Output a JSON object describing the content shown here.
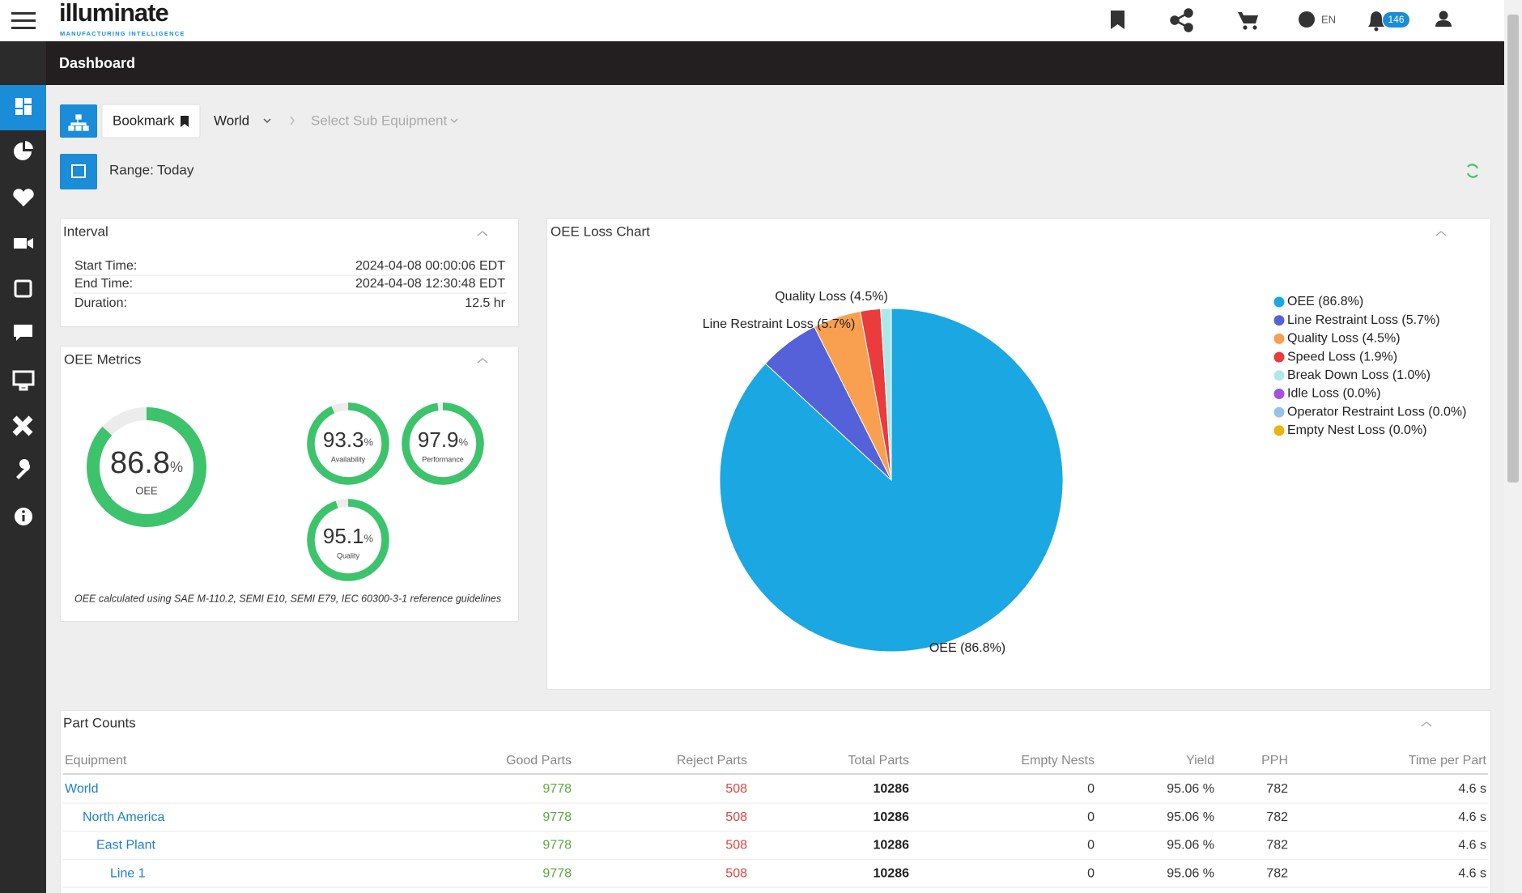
{
  "header": {
    "logo": "illuminate",
    "tagline": "MANUFACTURING INTELLIGENCE",
    "language": "EN",
    "notifications": "146"
  },
  "page_title": "Dashboard",
  "toolbar": {
    "bookmark": "Bookmark",
    "equipment": "World",
    "sub_equipment": "Select Sub Equipment",
    "range_label": "Range:",
    "range_value": "Today"
  },
  "interval": {
    "title": "Interval",
    "rows": [
      [
        "Start Time:",
        "2024-04-08 00:00:06 EDT"
      ],
      [
        "End Time:",
        "2024-04-08 12:30:48 EDT"
      ],
      [
        "Duration:",
        "12.5 hr"
      ]
    ]
  },
  "metrics": {
    "title": "OEE Metrics",
    "unit": "%",
    "range": [
      0,
      100
    ],
    "items": [
      {
        "label": "OEE",
        "value": 86.8
      },
      {
        "label": "Availability",
        "value": 93.3
      },
      {
        "label": "Performance",
        "value": 97.9
      },
      {
        "label": "Quality",
        "value": 95.1
      }
    ],
    "footnote": "OEE calculated using SAE M-110.2, SEMI E10, SEMI E79, IEC 60300-3-1 reference guidelines"
  },
  "chart_data": {
    "type": "pie",
    "title": "OEE Loss Chart",
    "categories": [
      "OEE (86.8%)",
      "Line Restraint Loss (5.7%)",
      "Quality Loss (4.5%)",
      "Speed Loss (1.9%)",
      "Break Down Loss (1.0%)",
      "Idle Loss (0.0%)",
      "Operator Restraint Loss (0.0%)",
      "Empty Nest Loss (0.0%)"
    ],
    "values": [
      86.8,
      5.7,
      4.5,
      1.9,
      1.0,
      0.0,
      0.0,
      0.0
    ],
    "colors": [
      "#1ba7e1",
      "#5461d8",
      "#f99f50",
      "#ea3b3d",
      "#aee9ea",
      "#a64fe0",
      "#97c2e4",
      "#e6b60a"
    ],
    "legend": "right"
  },
  "part_counts": {
    "title": "Part Counts",
    "columns": [
      "Equipment",
      "Good Parts",
      "Reject Parts",
      "Total Parts",
      "Empty Nests",
      "Yield",
      "PPH",
      "Time per Part"
    ],
    "rows": [
      [
        "World",
        9778,
        508,
        10286,
        0,
        "95.06 %",
        782,
        "4.6 s"
      ],
      [
        "North America",
        9778,
        508,
        10286,
        0,
        "95.06 %",
        782,
        "4.6 s"
      ],
      [
        "East Plant",
        9778,
        508,
        10286,
        0,
        "95.06 %",
        782,
        "4.6 s"
      ],
      [
        "Line 1",
        9778,
        508,
        10286,
        0,
        "95.06 %",
        782,
        "4.6 s"
      ]
    ]
  }
}
